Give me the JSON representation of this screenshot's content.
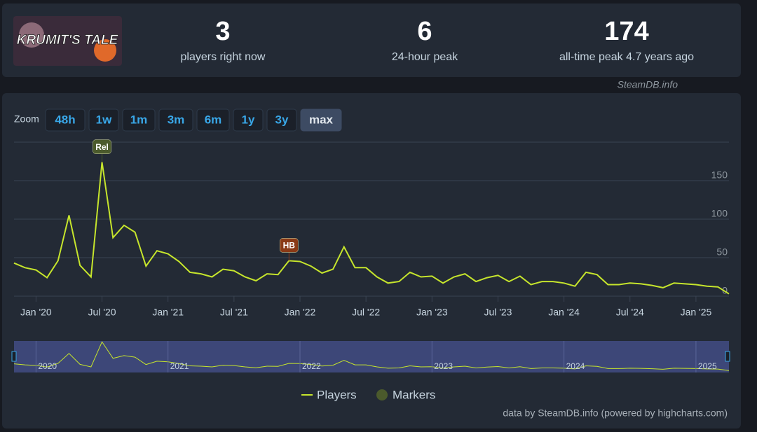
{
  "header": {
    "image_title": "KRUMIT'S TALE",
    "stats": [
      {
        "value": "3",
        "label": "players right now"
      },
      {
        "value": "6",
        "label": "24-hour peak"
      },
      {
        "value": "174",
        "label": "all-time peak 4.7 years ago"
      }
    ],
    "watermark": "SteamDB.info"
  },
  "zoom": {
    "label": "Zoom",
    "buttons": [
      "48h",
      "1w",
      "1m",
      "3m",
      "6m",
      "1y",
      "3y",
      "max"
    ],
    "active": "max"
  },
  "footer": "data by SteamDB.info (powered by highcharts.com)",
  "chart_data": {
    "type": "line",
    "x": [
      "2019-11",
      "2019-12",
      "2020-01",
      "2020-02",
      "2020-03",
      "2020-04",
      "2020-05",
      "2020-06",
      "2020-07",
      "2020-08",
      "2020-09",
      "2020-10",
      "2020-11",
      "2020-12",
      "2021-01",
      "2021-02",
      "2021-03",
      "2021-04",
      "2021-05",
      "2021-06",
      "2021-07",
      "2021-08",
      "2021-09",
      "2021-10",
      "2021-11",
      "2021-12",
      "2022-01",
      "2022-02",
      "2022-03",
      "2022-04",
      "2022-05",
      "2022-06",
      "2022-07",
      "2022-08",
      "2022-09",
      "2022-10",
      "2022-11",
      "2022-12",
      "2023-01",
      "2023-02",
      "2023-03",
      "2023-04",
      "2023-05",
      "2023-06",
      "2023-07",
      "2023-08",
      "2023-09",
      "2023-10",
      "2023-11",
      "2023-12",
      "2024-01",
      "2024-02",
      "2024-03",
      "2024-04",
      "2024-05",
      "2024-06",
      "2024-07",
      "2024-08",
      "2024-09",
      "2024-10",
      "2024-11",
      "2024-12",
      "2025-01",
      "2025-02",
      "2025-03",
      "2025-04"
    ],
    "series": [
      {
        "name": "Players",
        "color": "#c6e52c",
        "values": [
          43,
          37,
          34,
          24,
          46,
          105,
          40,
          25,
          174,
          76,
          92,
          83,
          39,
          59,
          55,
          45,
          31,
          29,
          25,
          35,
          33,
          25,
          20,
          29,
          28,
          46,
          45,
          39,
          30,
          35,
          64,
          37,
          37,
          25,
          17,
          19,
          31,
          25,
          26,
          17,
          25,
          29,
          19,
          24,
          27,
          19,
          26,
          15,
          19,
          19,
          17,
          13,
          31,
          28,
          15,
          15,
          17,
          16,
          14,
          11,
          17,
          16,
          15,
          13,
          12,
          3
        ]
      }
    ],
    "markers": {
      "name": "Markers",
      "color": "#4b5a2c",
      "items": [
        {
          "label": "Rel",
          "x": "2020-07",
          "color": "#4b5a2c"
        },
        {
          "label": "HB",
          "x": "2021-12",
          "color": "#8a3a16"
        }
      ]
    },
    "xlim": [
      "2019-11",
      "2025-04"
    ],
    "xticks": [
      {
        "value": "2020-01",
        "label": "Jan '20"
      },
      {
        "value": "2020-07",
        "label": "Jul '20"
      },
      {
        "value": "2021-01",
        "label": "Jan '21"
      },
      {
        "value": "2021-07",
        "label": "Jul '21"
      },
      {
        "value": "2022-01",
        "label": "Jan '22"
      },
      {
        "value": "2022-07",
        "label": "Jul '22"
      },
      {
        "value": "2023-01",
        "label": "Jan '23"
      },
      {
        "value": "2023-07",
        "label": "Jul '23"
      },
      {
        "value": "2024-01",
        "label": "Jan '24"
      },
      {
        "value": "2024-07",
        "label": "Jul '24"
      },
      {
        "value": "2025-01",
        "label": "Jan '25"
      }
    ],
    "navigator_xticks": [
      {
        "value": "2020-01",
        "label": "2020"
      },
      {
        "value": "2021-01",
        "label": "2021"
      },
      {
        "value": "2022-01",
        "label": "2022"
      },
      {
        "value": "2023-01",
        "label": "2023"
      },
      {
        "value": "2024-01",
        "label": "2024"
      },
      {
        "value": "2025-01",
        "label": "2025"
      }
    ],
    "ylim": [
      0,
      200
    ],
    "yticks": [
      0,
      50,
      100,
      150
    ],
    "grid": true
  }
}
